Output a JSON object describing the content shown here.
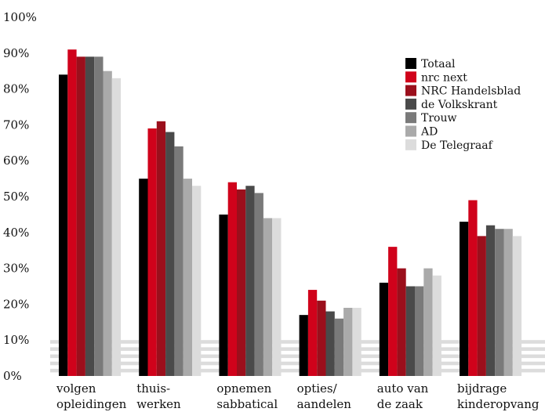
{
  "chart_data": {
    "type": "bar",
    "categories": [
      [
        "volgen",
        "opleidingen"
      ],
      [
        "thuis-",
        "werken"
      ],
      [
        "opnemen",
        "sabbatical"
      ],
      [
        "opties/",
        "aandelen"
      ],
      [
        "auto van",
        "de zaak"
      ],
      [
        "bijdrage",
        "kinderopvang"
      ]
    ],
    "y_ticks": [
      "0%",
      "10%",
      "20%",
      "30%",
      "40%",
      "50%",
      "60%",
      "70%",
      "80%",
      "90%",
      "100%"
    ],
    "ylim": [
      0,
      100
    ],
    "grid": "alternating horizontal bands",
    "legend_position": "top-right",
    "series": [
      {
        "name": "Totaal",
        "color": "#000000",
        "values": [
          84,
          55,
          45,
          17,
          26,
          43
        ]
      },
      {
        "name": "nrc next",
        "color": "#d0021b",
        "values": [
          91,
          69,
          54,
          24,
          36,
          49
        ]
      },
      {
        "name": "NRC Handelsblad",
        "color": "#9b0f1c",
        "values": [
          89,
          71,
          52,
          21,
          30,
          39
        ]
      },
      {
        "name": "de Volkskrant",
        "color": "#4a4a4a",
        "values": [
          89,
          68,
          53,
          18,
          25,
          42
        ]
      },
      {
        "name": "Trouw",
        "color": "#7a7a7a",
        "values": [
          89,
          64,
          51,
          16,
          25,
          41
        ]
      },
      {
        "name": "AD",
        "color": "#aaaaaa",
        "values": [
          85,
          55,
          44,
          19,
          30,
          41
        ]
      },
      {
        "name": "De Telegraaf",
        "color": "#dcdcdc",
        "values": [
          83,
          53,
          44,
          19,
          28,
          39
        ]
      }
    ]
  }
}
